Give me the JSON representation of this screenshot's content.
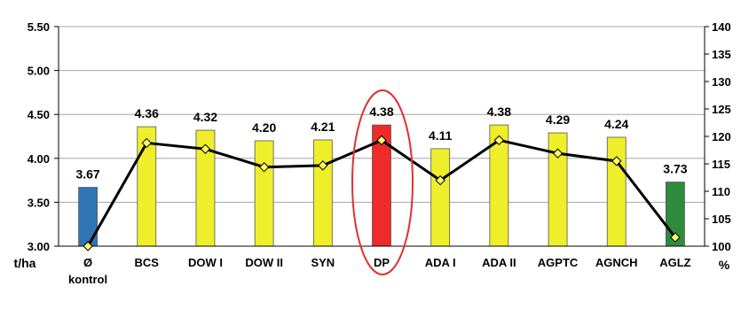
{
  "chart_data": {
    "type": "bar",
    "categories": [
      "Ø",
      "BCS",
      "DOW I",
      "DOW II",
      "SYN",
      "DP",
      "ADA I",
      "ADA II",
      "AGPTC",
      "AGNCH",
      "AGLZ"
    ],
    "category_sublabels": [
      "kontrol",
      "",
      "",
      "",
      "",
      "",
      "",
      "",
      "",
      "",
      ""
    ],
    "series": [
      {
        "type": "bar",
        "axis": "left",
        "values": [
          3.67,
          4.36,
          4.32,
          4.2,
          4.21,
          4.38,
          4.11,
          4.38,
          4.29,
          4.24,
          3.73
        ],
        "data_labels": [
          "3.67",
          "4.36",
          "4.32",
          "4.20",
          "4.21",
          "4.38",
          "4.11",
          "4.38",
          "4.29",
          "4.24",
          "3.73"
        ],
        "colors": [
          "#2e75b6",
          "#eeee2a",
          "#eeee2a",
          "#eeee2a",
          "#eeee2a",
          "#ee2a2a",
          "#eeee2a",
          "#eeee2a",
          "#eeee2a",
          "#eeee2a",
          "#2e8b3d"
        ]
      },
      {
        "type": "line",
        "axis": "right",
        "values": [
          100.0,
          118.8,
          117.7,
          114.4,
          114.7,
          119.3,
          112.0,
          119.3,
          116.9,
          115.5,
          101.6
        ],
        "color": "#000000",
        "marker_fill": "#ffff66"
      }
    ],
    "y_left": {
      "label": "t/ha",
      "ylim": [
        3.0,
        5.5
      ],
      "ticks": [
        "3.00",
        "3.50",
        "4.00",
        "4.50",
        "5.00",
        "5.50"
      ]
    },
    "y_right": {
      "label": "%",
      "ylim": [
        100,
        140
      ],
      "ticks": [
        "100",
        "105",
        "110",
        "115",
        "120",
        "125",
        "130",
        "135",
        "140"
      ]
    },
    "grid": true,
    "highlight_category": "DP",
    "highlight_color": "#e03030"
  }
}
